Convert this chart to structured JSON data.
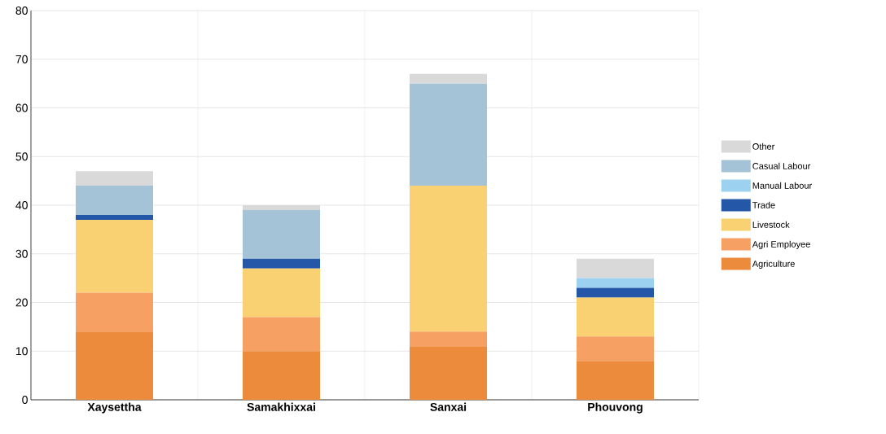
{
  "chart_data": {
    "type": "bar",
    "stacked": true,
    "categories": [
      "Xaysettha",
      "Samakhixxai",
      "Sanxai",
      "Phouvong"
    ],
    "series": [
      {
        "name": "Agriculture",
        "color": "#ed8b3d",
        "values": [
          14,
          10,
          11,
          8
        ]
      },
      {
        "name": "Agri Employee",
        "color": "#f6a064",
        "values": [
          8,
          7,
          3,
          5
        ]
      },
      {
        "name": "Livestock",
        "color": "#f9d072",
        "values": [
          15,
          10,
          30,
          8
        ]
      },
      {
        "name": "Trade",
        "color": "#2457a8",
        "values": [
          1,
          2,
          0,
          2
        ]
      },
      {
        "name": "Manual Labour",
        "color": "#9dd1f0",
        "values": [
          0,
          0,
          0,
          2
        ]
      },
      {
        "name": "Casual Labour",
        "color": "#a5c3d6",
        "values": [
          6,
          10,
          21,
          0
        ]
      },
      {
        "name": "Other",
        "color": "#d9d9d9",
        "values": [
          3,
          1,
          2,
          4
        ]
      }
    ],
    "ylim": [
      0,
      80
    ],
    "yticks": [
      0,
      10,
      20,
      30,
      40,
      50,
      60,
      70,
      80
    ],
    "grid": true,
    "legend": "right"
  }
}
